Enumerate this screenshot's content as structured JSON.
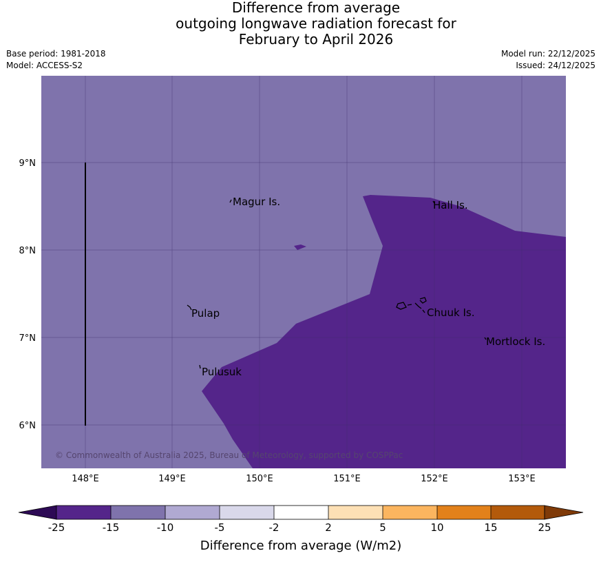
{
  "header": {
    "title_lines": [
      "Difference from average",
      "outgoing longwave radiation forecast for",
      "February to April 2026"
    ],
    "base_period": "Base period: 1981-2018",
    "model": "Model: ACCESS-S2",
    "model_run": "Model run: 22/12/2025",
    "issued": "Issued: 24/12/2025"
  },
  "map": {
    "background_color": "#7f73ac",
    "anomaly_color": "#54258a",
    "lon_ticks": [
      "148°E",
      "149°E",
      "150°E",
      "151°E",
      "152°E",
      "153°E"
    ],
    "lat_ticks": [
      "9°N",
      "8°N",
      "7°N",
      "6°N"
    ],
    "places": [
      "Magur Is.",
      "Hall Is.",
      "Pulap",
      "Chuuk Is.",
      "Mortlock Is.",
      "Pulusuk"
    ],
    "copyright": "© Commonwealth of Australia 2025, Bureau of Meteorology, supported by COSPPac"
  },
  "colorbar": {
    "title": "Difference from average (W/m2)",
    "tick_labels": [
      "-25",
      "-15",
      "-10",
      "-5",
      "-2",
      "2",
      "5",
      "10",
      "15",
      "25"
    ],
    "colors": [
      "#2d0a55",
      "#54258a",
      "#7f73ac",
      "#b0a9d2",
      "#d9d8ea",
      "#ffffff",
      "#fde0b5",
      "#fbb55f",
      "#e2811b",
      "#b35a0b",
      "#7f3a08"
    ]
  }
}
